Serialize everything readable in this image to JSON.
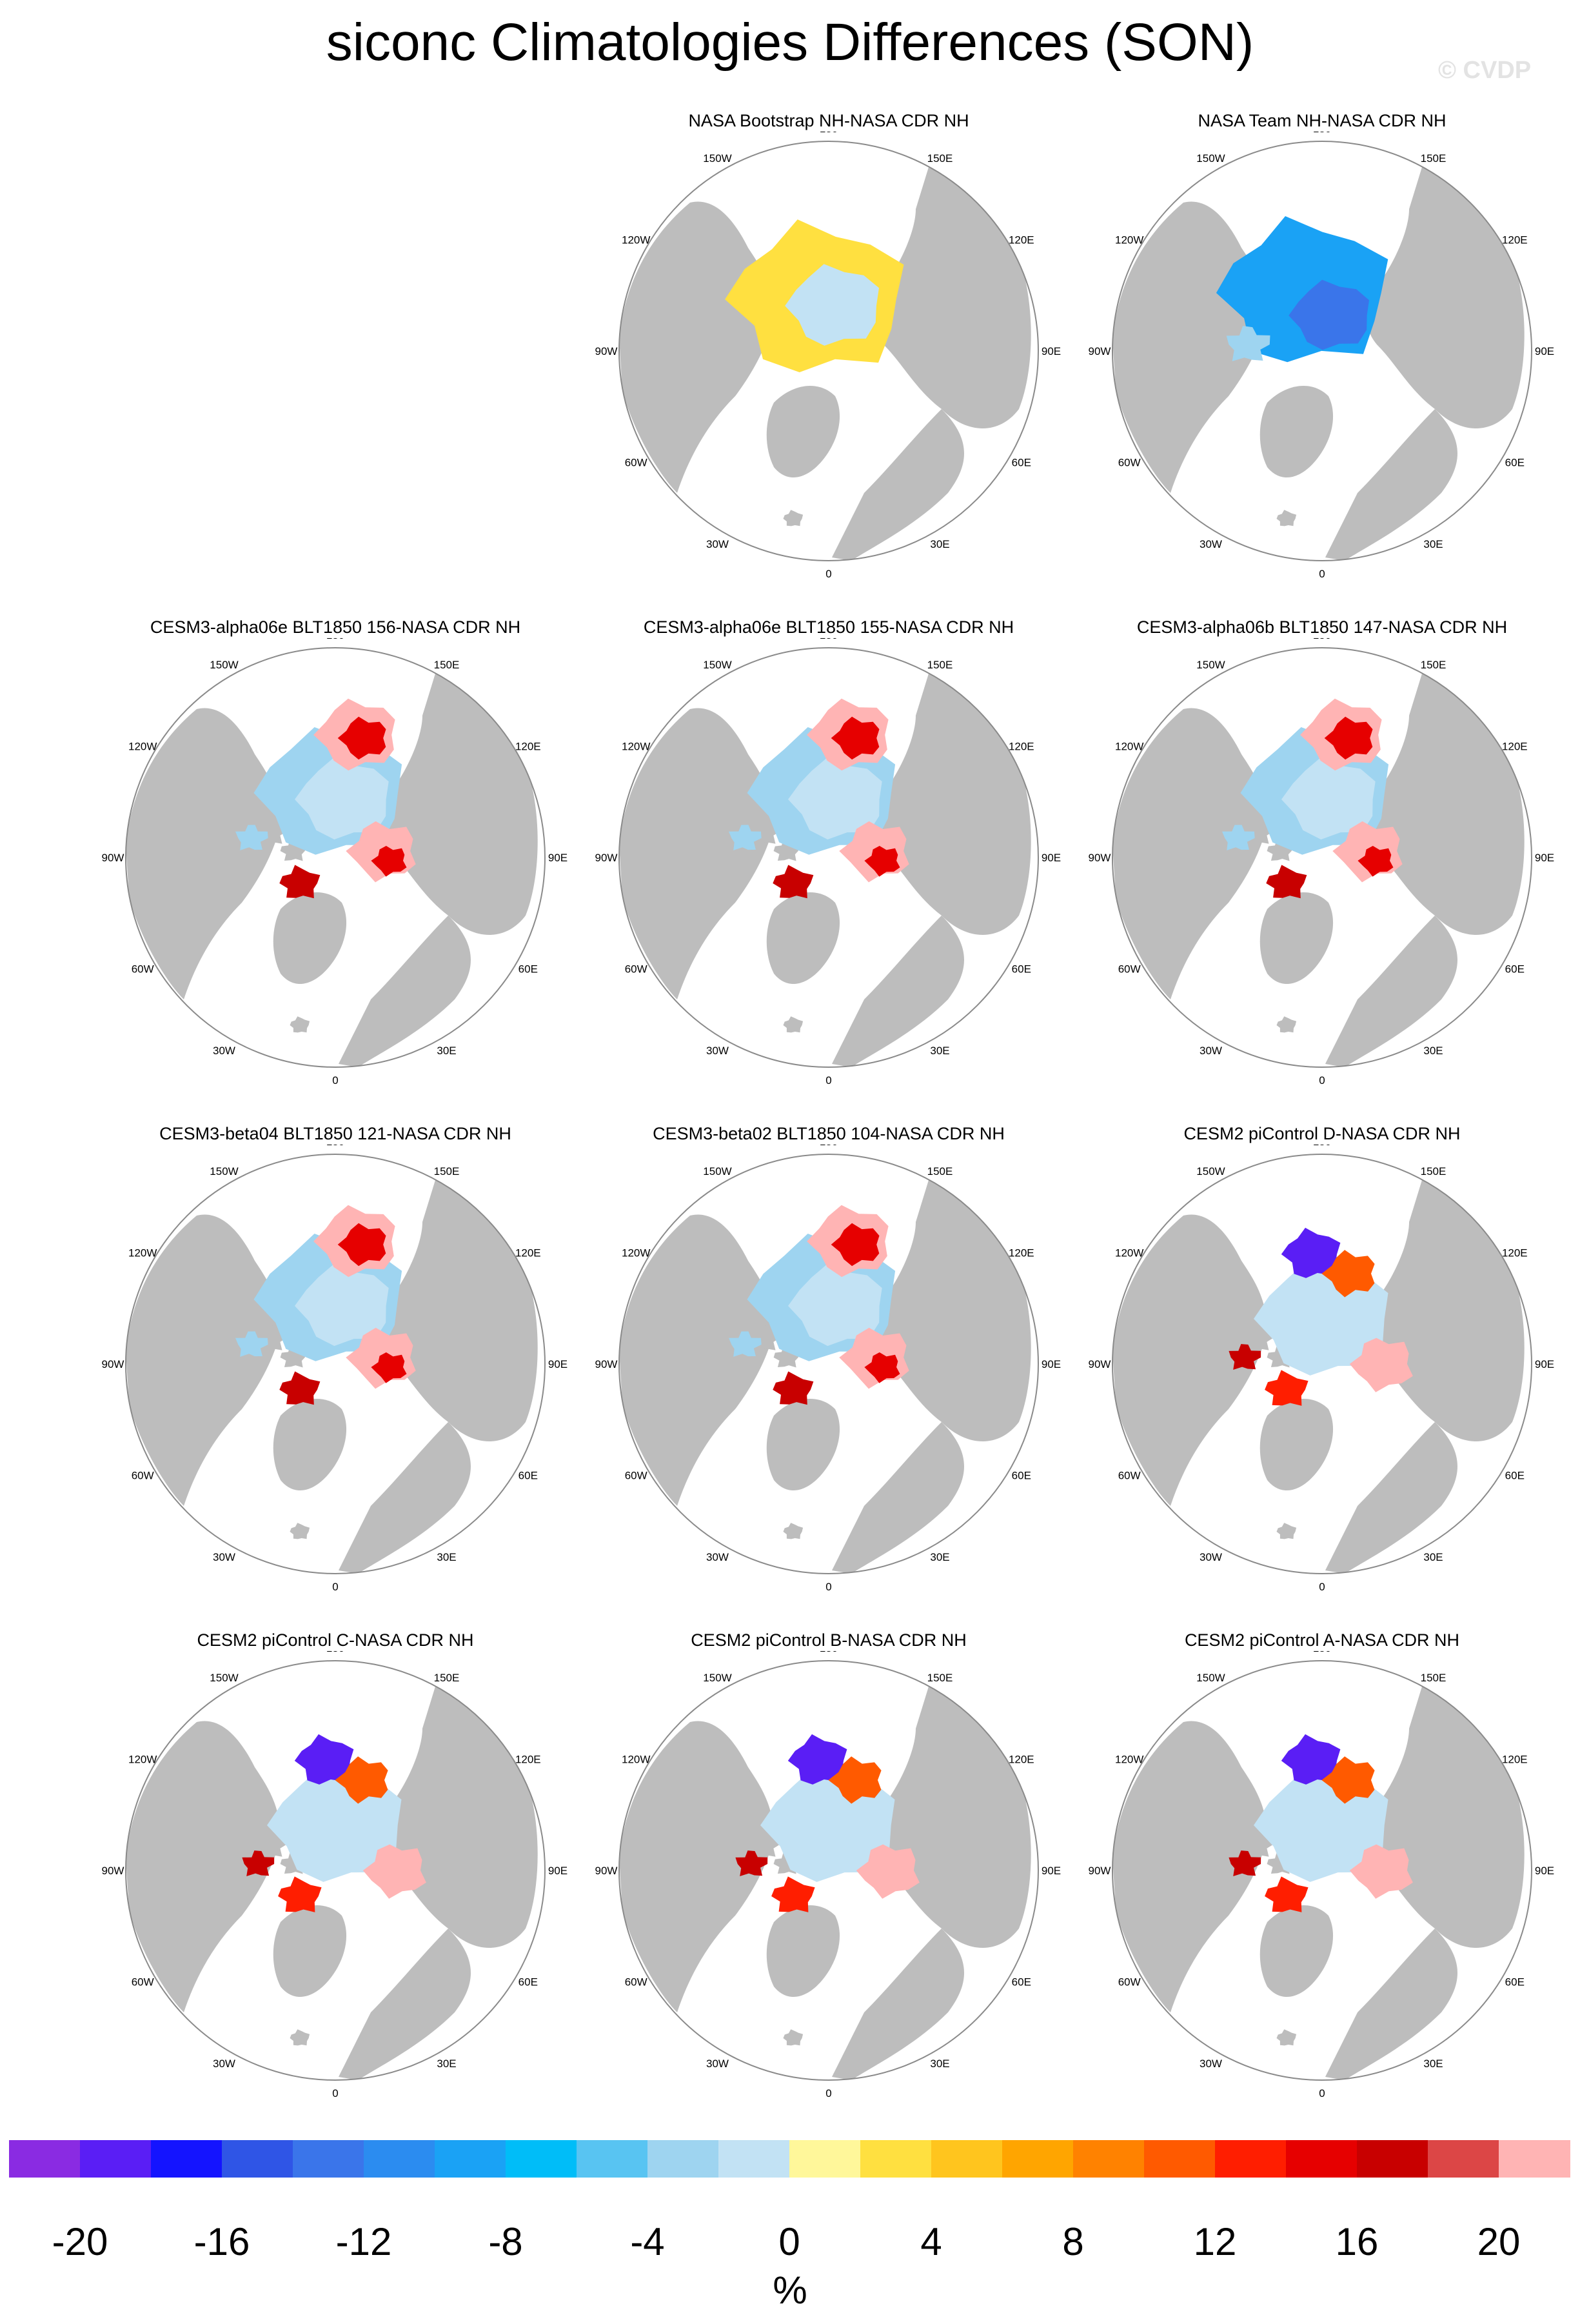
{
  "title": "siconc Climatologies Differences (SON)",
  "watermark": "© CVDP",
  "lon_labels": [
    "180",
    "150E",
    "120E",
    "90E",
    "60E",
    "30E",
    "0",
    "30W",
    "60W",
    "90W",
    "120W",
    "150W"
  ],
  "colors": {
    "land": "#bdbdbd",
    "ocean": "#ffffff",
    "coast": "#8a8a8a"
  },
  "panels": [
    {
      "title": "",
      "empty": true
    },
    {
      "title": "NASA Bootstrap NH-NASA CDR NH",
      "pattern": "bootstrap"
    },
    {
      "title": "NASA Team NH-NASA CDR NH",
      "pattern": "team"
    },
    {
      "title": "CESM3-alpha06e BLT1850 156-NASA CDR NH",
      "pattern": "cesm3"
    },
    {
      "title": "CESM3-alpha06e BLT1850 155-NASA CDR NH",
      "pattern": "cesm3"
    },
    {
      "title": "CESM3-alpha06b BLT1850 147-NASA CDR NH",
      "pattern": "cesm3"
    },
    {
      "title": "CESM3-beta04 BLT1850 121-NASA CDR NH",
      "pattern": "cesm3"
    },
    {
      "title": "CESM3-beta02 BLT1850 104-NASA CDR NH",
      "pattern": "cesm3"
    },
    {
      "title": "CESM2 piControl D-NASA CDR NH",
      "pattern": "cesm2"
    },
    {
      "title": "CESM2 piControl C-NASA CDR NH",
      "pattern": "cesm2"
    },
    {
      "title": "CESM2 piControl B-NASA CDR NH",
      "pattern": "cesm2"
    },
    {
      "title": "CESM2 piControl A-NASA CDR NH",
      "pattern": "cesm2"
    }
  ],
  "colorbar": {
    "units": "%",
    "labels": [
      "-20",
      "-16",
      "-12",
      "-8",
      "-4",
      "0",
      "4",
      "8",
      "12",
      "16",
      "20"
    ],
    "colors": [
      "#8a2be2",
      "#5a1ef5",
      "#1414ff",
      "#2f55e6",
      "#3a75ea",
      "#2b8cf0",
      "#1aa2f5",
      "#00bdf8",
      "#58c4f2",
      "#9ed4f0",
      "#c2e2f4",
      "#fff79a",
      "#ffe040",
      "#ffc51e",
      "#ffa500",
      "#ff8200",
      "#ff5a00",
      "#ff1e00",
      "#e60000",
      "#c80000",
      "#dc4646",
      "#ffb4b4"
    ]
  }
}
